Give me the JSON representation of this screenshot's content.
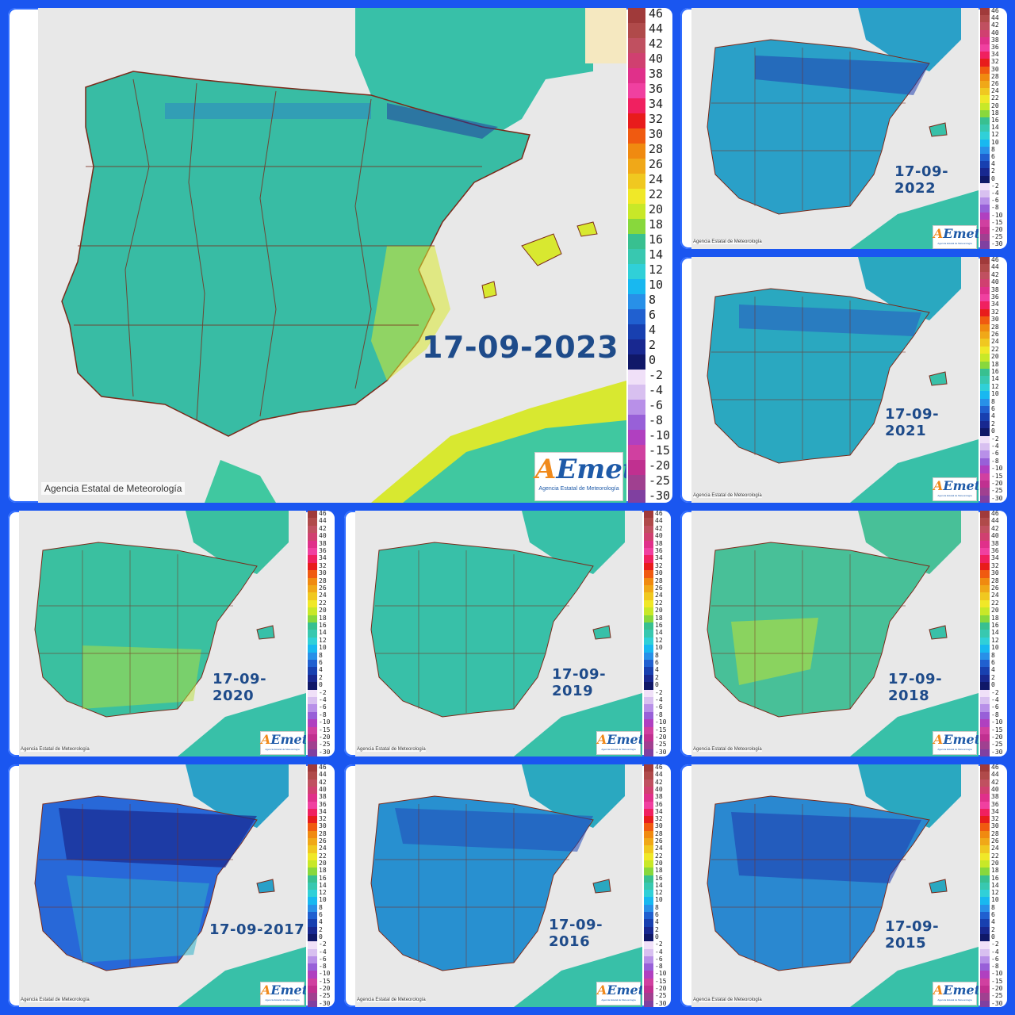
{
  "credit_text": "Agencia Estatal de Meteorología",
  "logo": {
    "name_a": "A",
    "name_rest": "Emet",
    "subtitle": "Agencia Estatal de Meteorología"
  },
  "legend_labels": [
    "46",
    "44",
    "42",
    "40",
    "38",
    "36",
    "34",
    "32",
    "30",
    "28",
    "26",
    "24",
    "22",
    "20",
    "18",
    "16",
    "14",
    "12",
    "10",
    "8",
    "6",
    "4",
    "2",
    "0",
    "-2",
    "-4",
    "-6",
    "-8",
    "-10",
    "-15",
    "-20",
    "-25",
    "-30"
  ],
  "legend_colors": [
    "#a03a3a",
    "#b04a4a",
    "#c05060",
    "#d04070",
    "#e0308a",
    "#f040a0",
    "#f02060",
    "#e81c1c",
    "#f05a10",
    "#f08a10",
    "#f0a818",
    "#f0c820",
    "#f0e828",
    "#c8e828",
    "#88d83c",
    "#38c090",
    "#38c8b0",
    "#30d0d8",
    "#18b8f0",
    "#2890e8",
    "#2060d0",
    "#1840b0",
    "#182890",
    "#101868",
    "#f0e0f8",
    "#d8c0f0",
    "#b890e8",
    "#9860d8",
    "#b040c0",
    "#d040a0",
    "#c03090",
    "#a04090",
    "#8040a0"
  ],
  "panels": [
    {
      "date": "17-09-2023",
      "color": "#38c0a8"
    },
    {
      "date": "17-09-2022",
      "color": "#2aa0c8"
    },
    {
      "date": "17-09-2021",
      "color": "#2aa8c0"
    },
    {
      "date": "17-09-2020",
      "color": "#3ac0a0"
    },
    {
      "date": "17-09-2019",
      "color": "#38c0a8"
    },
    {
      "date": "17-09-2018",
      "color": "#48c098"
    },
    {
      "date": "17-09-2017",
      "color": "#2868d8"
    },
    {
      "date": "17-09-2016",
      "color": "#2890d0"
    },
    {
      "date": "17-09-2015",
      "color": "#2a88d0"
    }
  ]
}
